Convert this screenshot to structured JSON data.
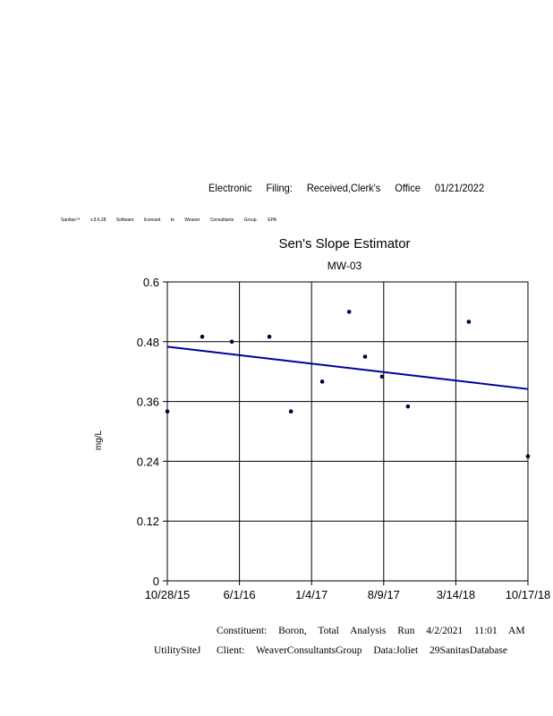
{
  "header": {
    "filing_stamp": "Electronic Filing: Received,Clerk's Office 01/21/2022",
    "license_text": "Sanitas™ v.9.6.28 Software licensed to Weaver Consultants Group. EPA"
  },
  "footer": {
    "line1": "Constituent: Boron, Total Analysis Run 4/2/2021 11:01 AM",
    "site": "UtilitySiteJ",
    "line2": "Client: WeaverConsultantsGroup Data:Joliet 29SanitasDatabase"
  },
  "chart_data": {
    "type": "scatter",
    "title": "Sen's Slope Estimator",
    "subtitle": "MW-03",
    "xlabel": "",
    "ylabel": "mg/L",
    "xlim": [
      "2015-10-28",
      "2018-10-17"
    ],
    "ylim": [
      0,
      0.6
    ],
    "grid": true,
    "x_tick_labels": [
      "10/28/15",
      "6/1/16",
      "1/4/17",
      "8/9/17",
      "3/14/18",
      "10/17/18"
    ],
    "y_tick_labels": [
      "0",
      "0.12",
      "0.24",
      "0.36",
      "0.48",
      "0.6"
    ],
    "y_ticks": [
      0,
      0.12,
      0.24,
      0.36,
      0.48,
      0.6
    ],
    "series": [
      {
        "x": [
          "2015-10-28",
          "2016-02-10",
          "2016-05-09",
          "2016-08-30",
          "2016-11-03",
          "2017-02-05",
          "2017-04-27",
          "2017-06-14",
          "2017-08-04",
          "2017-10-21",
          "2018-04-22",
          "2018-10-17"
        ],
        "y": [
          0.34,
          0.49,
          0.48,
          0.49,
          0.34,
          0.4,
          0.54,
          0.45,
          0.41,
          0.35,
          0.52,
          0.25
        ]
      }
    ],
    "trend_line": {
      "x": [
        "2015-10-28",
        "2018-10-17"
      ],
      "y": [
        0.47,
        0.385
      ]
    },
    "colors": {
      "points": "#000033",
      "trend": "#000099",
      "grid": "#000000"
    }
  }
}
